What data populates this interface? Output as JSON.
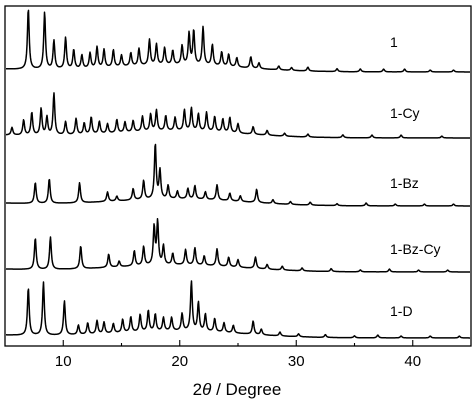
{
  "chart_data": {
    "type": "line",
    "xlabel_prefix": "2",
    "xlabel_symbol": "θ",
    "xlabel_suffix": " / Degree",
    "ylabel": "",
    "xlim": [
      5,
      45
    ],
    "x_ticks": [
      10,
      20,
      30,
      40
    ],
    "x_tick_labels": [
      "10",
      "20",
      "30",
      "40"
    ],
    "grid": false,
    "series": [
      {
        "name": "1",
        "peaks": [
          [
            7.0,
            64
          ],
          [
            8.4,
            60
          ],
          [
            9.2,
            30
          ],
          [
            10.2,
            33
          ],
          [
            10.9,
            20
          ],
          [
            11.6,
            14
          ],
          [
            12.3,
            16
          ],
          [
            12.9,
            22
          ],
          [
            13.5,
            19
          ],
          [
            14.3,
            18
          ],
          [
            15.0,
            12
          ],
          [
            15.8,
            14
          ],
          [
            16.5,
            18
          ],
          [
            17.4,
            27
          ],
          [
            18.0,
            22
          ],
          [
            18.7,
            18
          ],
          [
            19.4,
            15
          ],
          [
            20.2,
            20
          ],
          [
            20.8,
            33
          ],
          [
            21.2,
            36
          ],
          [
            22.0,
            40
          ],
          [
            22.8,
            22
          ],
          [
            23.6,
            15
          ],
          [
            24.2,
            13
          ],
          [
            24.9,
            10
          ],
          [
            26.1,
            12
          ],
          [
            26.8,
            6
          ],
          [
            28.5,
            4
          ],
          [
            29.6,
            3
          ],
          [
            31.0,
            4
          ],
          [
            33.5,
            3
          ],
          [
            35.5,
            3
          ],
          [
            37.5,
            3
          ],
          [
            39.3,
            3
          ],
          [
            41.5,
            2
          ],
          [
            43.5,
            2
          ]
        ]
      },
      {
        "name": "1-Cy",
        "peaks": [
          [
            5.6,
            8
          ],
          [
            6.6,
            16
          ],
          [
            7.3,
            24
          ],
          [
            8.1,
            28
          ],
          [
            8.6,
            19
          ],
          [
            9.2,
            44
          ],
          [
            10.2,
            14
          ],
          [
            11.1,
            17
          ],
          [
            11.8,
            12
          ],
          [
            12.4,
            18
          ],
          [
            13.1,
            13
          ],
          [
            13.8,
            10
          ],
          [
            14.6,
            14
          ],
          [
            15.3,
            11
          ],
          [
            16.0,
            12
          ],
          [
            16.8,
            16
          ],
          [
            17.5,
            18
          ],
          [
            18.0,
            22
          ],
          [
            18.8,
            16
          ],
          [
            19.6,
            14
          ],
          [
            20.4,
            22
          ],
          [
            21.0,
            24
          ],
          [
            21.6,
            18
          ],
          [
            22.3,
            20
          ],
          [
            23.0,
            16
          ],
          [
            23.7,
            14
          ],
          [
            24.3,
            16
          ],
          [
            25.0,
            10
          ],
          [
            26.3,
            8
          ],
          [
            27.5,
            5
          ],
          [
            29.0,
            3
          ],
          [
            31.0,
            3
          ],
          [
            34.0,
            3
          ],
          [
            36.5,
            3
          ],
          [
            39.0,
            3
          ],
          [
            42.5,
            2
          ]
        ]
      },
      {
        "name": "1-Bz",
        "peaks": [
          [
            7.6,
            22
          ],
          [
            8.8,
            26
          ],
          [
            11.4,
            21
          ],
          [
            13.8,
            10
          ],
          [
            14.6,
            5
          ],
          [
            16.0,
            12
          ],
          [
            16.9,
            20
          ],
          [
            17.9,
            58
          ],
          [
            18.3,
            30
          ],
          [
            19.0,
            14
          ],
          [
            19.8,
            8
          ],
          [
            20.7,
            11
          ],
          [
            21.3,
            14
          ],
          [
            22.2,
            8
          ],
          [
            23.2,
            16
          ],
          [
            24.3,
            8
          ],
          [
            25.2,
            6
          ],
          [
            26.6,
            14
          ],
          [
            28.0,
            4
          ],
          [
            29.5,
            3
          ],
          [
            31.2,
            3
          ],
          [
            33.5,
            2
          ],
          [
            36.0,
            3
          ],
          [
            38.5,
            2
          ],
          [
            41.0,
            2
          ],
          [
            43.5,
            2
          ]
        ]
      },
      {
        "name": "1-Bz-Cy",
        "peaks": [
          [
            7.6,
            33
          ],
          [
            8.9,
            34
          ],
          [
            11.5,
            24
          ],
          [
            13.9,
            14
          ],
          [
            14.8,
            6
          ],
          [
            16.1,
            16
          ],
          [
            16.9,
            20
          ],
          [
            17.8,
            40
          ],
          [
            18.1,
            45
          ],
          [
            18.6,
            20
          ],
          [
            19.4,
            12
          ],
          [
            20.5,
            16
          ],
          [
            21.3,
            18
          ],
          [
            22.1,
            10
          ],
          [
            23.2,
            18
          ],
          [
            24.2,
            10
          ],
          [
            25.0,
            8
          ],
          [
            26.5,
            12
          ],
          [
            27.5,
            5
          ],
          [
            28.8,
            4
          ],
          [
            30.5,
            3
          ],
          [
            33.0,
            3
          ],
          [
            35.5,
            2
          ],
          [
            38.0,
            3
          ],
          [
            40.5,
            2
          ],
          [
            43.0,
            2
          ]
        ]
      },
      {
        "name": "1-D",
        "peaks": [
          [
            7.0,
            50
          ],
          [
            8.3,
            56
          ],
          [
            10.1,
            36
          ],
          [
            11.3,
            10
          ],
          [
            12.1,
            12
          ],
          [
            12.9,
            14
          ],
          [
            13.5,
            12
          ],
          [
            14.3,
            10
          ],
          [
            15.1,
            14
          ],
          [
            15.8,
            16
          ],
          [
            16.6,
            18
          ],
          [
            17.3,
            22
          ],
          [
            17.9,
            18
          ],
          [
            18.6,
            14
          ],
          [
            19.3,
            14
          ],
          [
            20.2,
            18
          ],
          [
            21.0,
            52
          ],
          [
            21.6,
            30
          ],
          [
            22.2,
            18
          ],
          [
            23.0,
            14
          ],
          [
            23.8,
            10
          ],
          [
            24.6,
            8
          ],
          [
            26.3,
            14
          ],
          [
            27.0,
            6
          ],
          [
            28.6,
            4
          ],
          [
            30.2,
            3
          ],
          [
            32.5,
            3
          ],
          [
            35.0,
            2
          ],
          [
            37.0,
            3
          ],
          [
            39.0,
            2
          ],
          [
            41.5,
            2
          ],
          [
            44.0,
            2
          ]
        ]
      }
    ]
  }
}
